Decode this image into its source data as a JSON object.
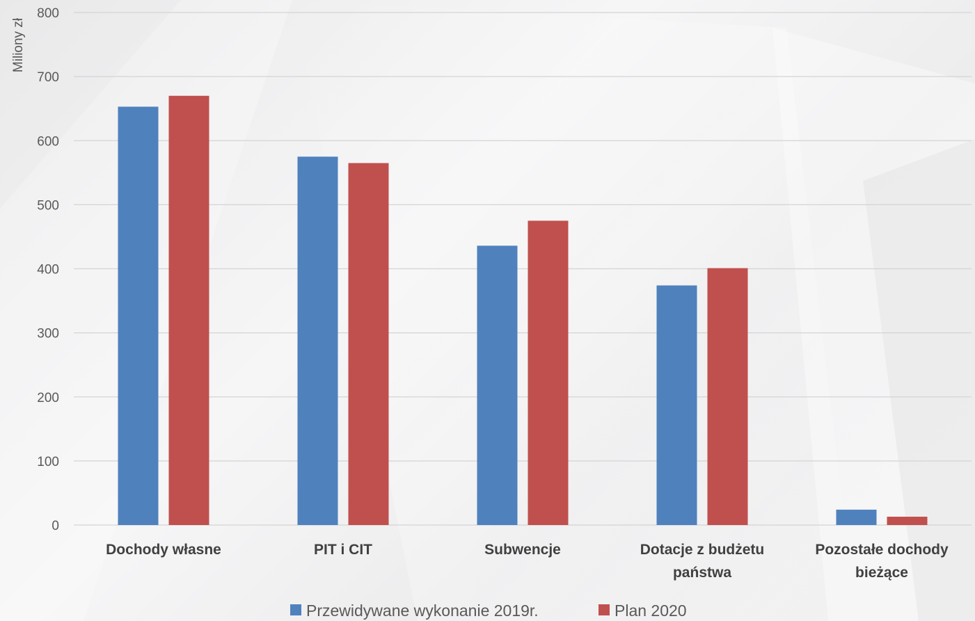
{
  "chart_data": {
    "type": "bar",
    "ylabel": "Miliony zł",
    "ylim": [
      0,
      800
    ],
    "ytick_step": 100,
    "grid": true,
    "legend_position": "bottom",
    "categories": [
      [
        "Dochody własne"
      ],
      [
        "PIT i CIT"
      ],
      [
        "Subwencje"
      ],
      [
        "Dotacje z budżetu",
        "państwa"
      ],
      [
        "Pozostałe dochody",
        "bieżące"
      ]
    ],
    "series": [
      {
        "name": "Przewidywane wykonanie 2019r.",
        "color": "#4f81bd",
        "values": [
          653,
          575,
          436,
          374,
          24
        ]
      },
      {
        "name": "Plan 2020",
        "color": "#c0504d",
        "values": [
          670,
          565,
          475,
          401,
          13
        ]
      }
    ]
  }
}
